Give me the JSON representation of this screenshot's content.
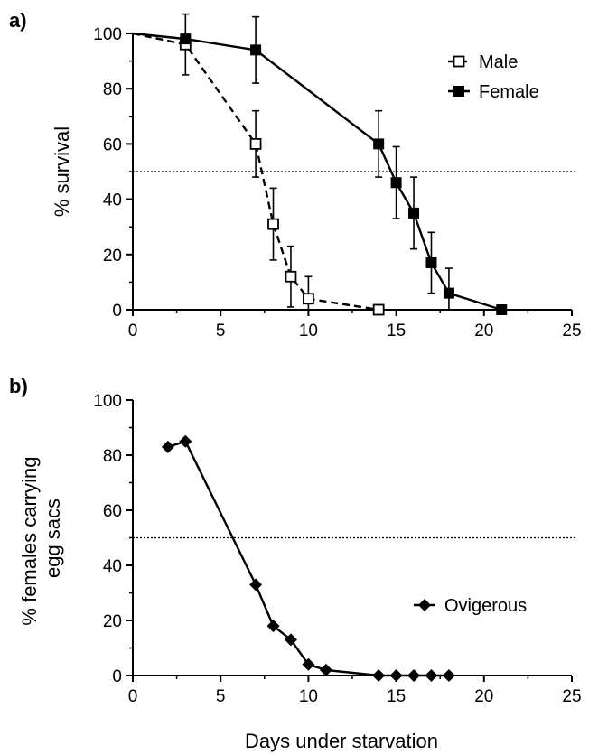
{
  "figure": {
    "xlabel": "Days under starvation"
  },
  "chart_data": [
    {
      "type": "line",
      "panel_label": "a)",
      "title": "",
      "xlabel": "",
      "ylabel": "% survival",
      "xlim": [
        0,
        25
      ],
      "ylim": [
        0,
        100
      ],
      "x_ticks": [
        "0",
        "5",
        "10",
        "15",
        "20",
        "25"
      ],
      "y_ticks": [
        "0",
        "20",
        "40",
        "60",
        "80",
        "100"
      ],
      "reference_line_y": 50,
      "legend_position": "top-right",
      "series": [
        {
          "name": "Male",
          "marker": "open-square",
          "line_style": "dashed",
          "color": "#000000",
          "x": [
            0,
            3,
            7,
            8,
            9,
            10,
            14
          ],
          "y": [
            100,
            96,
            60,
            31,
            12,
            4,
            0
          ],
          "error": [
            0,
            11,
            12,
            13,
            11,
            8,
            0
          ]
        },
        {
          "name": "Female",
          "marker": "filled-square",
          "line_style": "solid",
          "color": "#000000",
          "x": [
            0,
            3,
            7,
            14,
            15,
            16,
            17,
            18,
            21
          ],
          "y": [
            100,
            98,
            94,
            60,
            46,
            35,
            17,
            6,
            0
          ],
          "error": [
            0,
            0,
            12,
            12,
            13,
            13,
            11,
            9,
            0
          ]
        }
      ]
    },
    {
      "type": "line",
      "panel_label": "b)",
      "title": "",
      "xlabel": "Days under starvation",
      "ylabel": "% females carrying egg sacs",
      "ylabel_lines": [
        "% females carrying",
        "egg sacs"
      ],
      "xlim": [
        0,
        25
      ],
      "ylim": [
        0,
        100
      ],
      "x_ticks": [
        "0",
        "5",
        "10",
        "15",
        "20",
        "25"
      ],
      "y_ticks": [
        "0",
        "20",
        "40",
        "60",
        "80",
        "100"
      ],
      "reference_line_y": 50,
      "legend_position": "right",
      "series": [
        {
          "name": "Ovigerous",
          "marker": "filled-diamond",
          "line_style": "solid",
          "color": "#000000",
          "x": [
            2,
            3,
            7,
            8,
            9,
            10,
            11,
            14,
            15,
            16,
            17,
            18
          ],
          "y": [
            83,
            85,
            33,
            18,
            13,
            4,
            2,
            0,
            0,
            0,
            0,
            0
          ]
        }
      ]
    }
  ]
}
